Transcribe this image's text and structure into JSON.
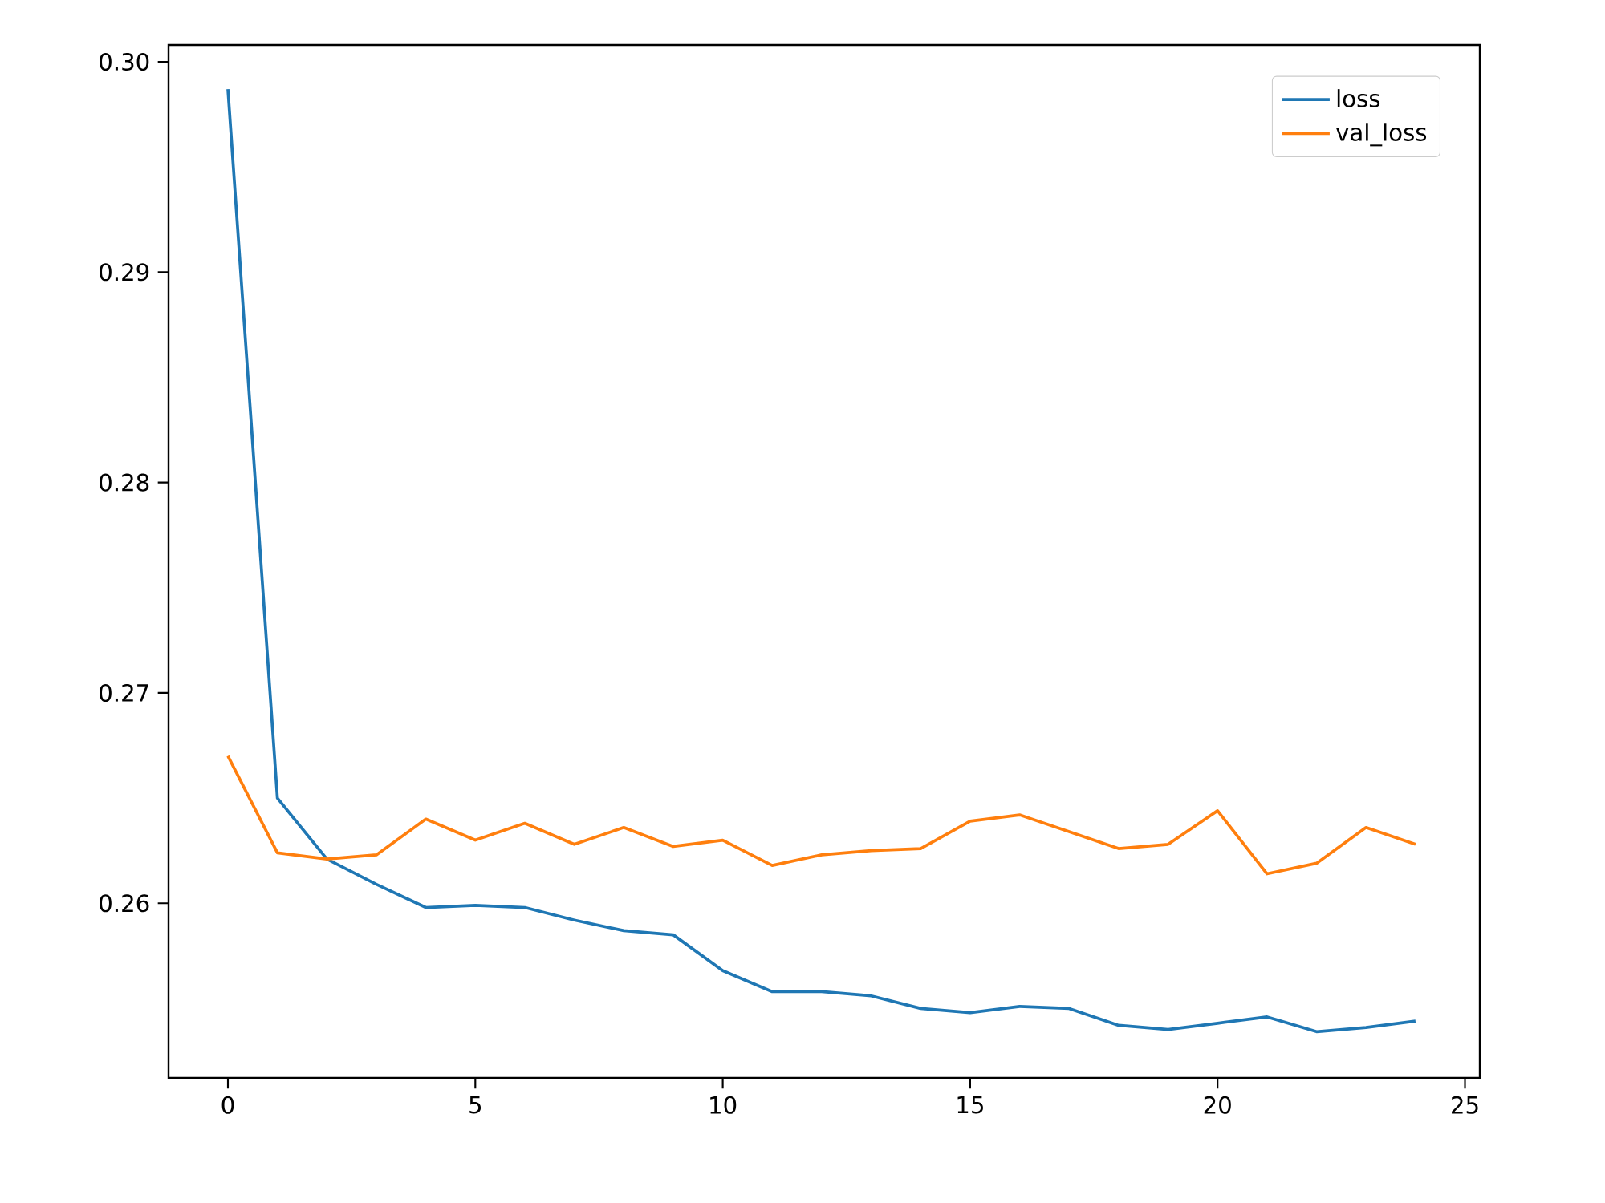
{
  "chart_data": {
    "type": "line",
    "x": [
      0,
      1,
      2,
      3,
      4,
      5,
      6,
      7,
      8,
      9,
      10,
      11,
      12,
      13,
      14,
      15,
      16,
      17,
      18,
      19,
      20,
      21,
      22,
      23,
      24
    ],
    "series": [
      {
        "name": "loss",
        "color": "#1f77b4",
        "values": [
          0.2987,
          0.265,
          0.2621,
          0.2609,
          0.2598,
          0.2599,
          0.2598,
          0.2592,
          0.2587,
          0.2585,
          0.2568,
          0.2558,
          0.2558,
          0.2556,
          0.255,
          0.2548,
          0.2551,
          0.255,
          0.2542,
          0.254,
          0.2543,
          0.2546,
          0.2539,
          0.2541,
          0.2544
        ]
      },
      {
        "name": "val_loss",
        "color": "#ff7f0e",
        "values": [
          0.267,
          0.2624,
          0.2621,
          0.2623,
          0.264,
          0.263,
          0.2638,
          0.2628,
          0.2636,
          0.2627,
          0.263,
          0.2618,
          0.2623,
          0.2625,
          0.2626,
          0.2639,
          0.2642,
          0.2634,
          0.2626,
          0.2628,
          0.2644,
          0.2614,
          0.2619,
          0.2636,
          0.2628
        ]
      }
    ],
    "xlim": [
      -1.2,
      25.3
    ],
    "ylim": [
      0.2517,
      0.3008
    ],
    "xticks": [
      0,
      5,
      10,
      15,
      20,
      25
    ],
    "yticks": [
      {
        "value": 0.26,
        "label": "0.26"
      },
      {
        "value": 0.27,
        "label": "0.27"
      },
      {
        "value": 0.28,
        "label": "0.28"
      },
      {
        "value": 0.29,
        "label": "0.29"
      },
      {
        "value": 0.3,
        "label": "0.30"
      }
    ],
    "grid": false,
    "legend": "top right",
    "marker": "none",
    "line_style": "solid"
  }
}
